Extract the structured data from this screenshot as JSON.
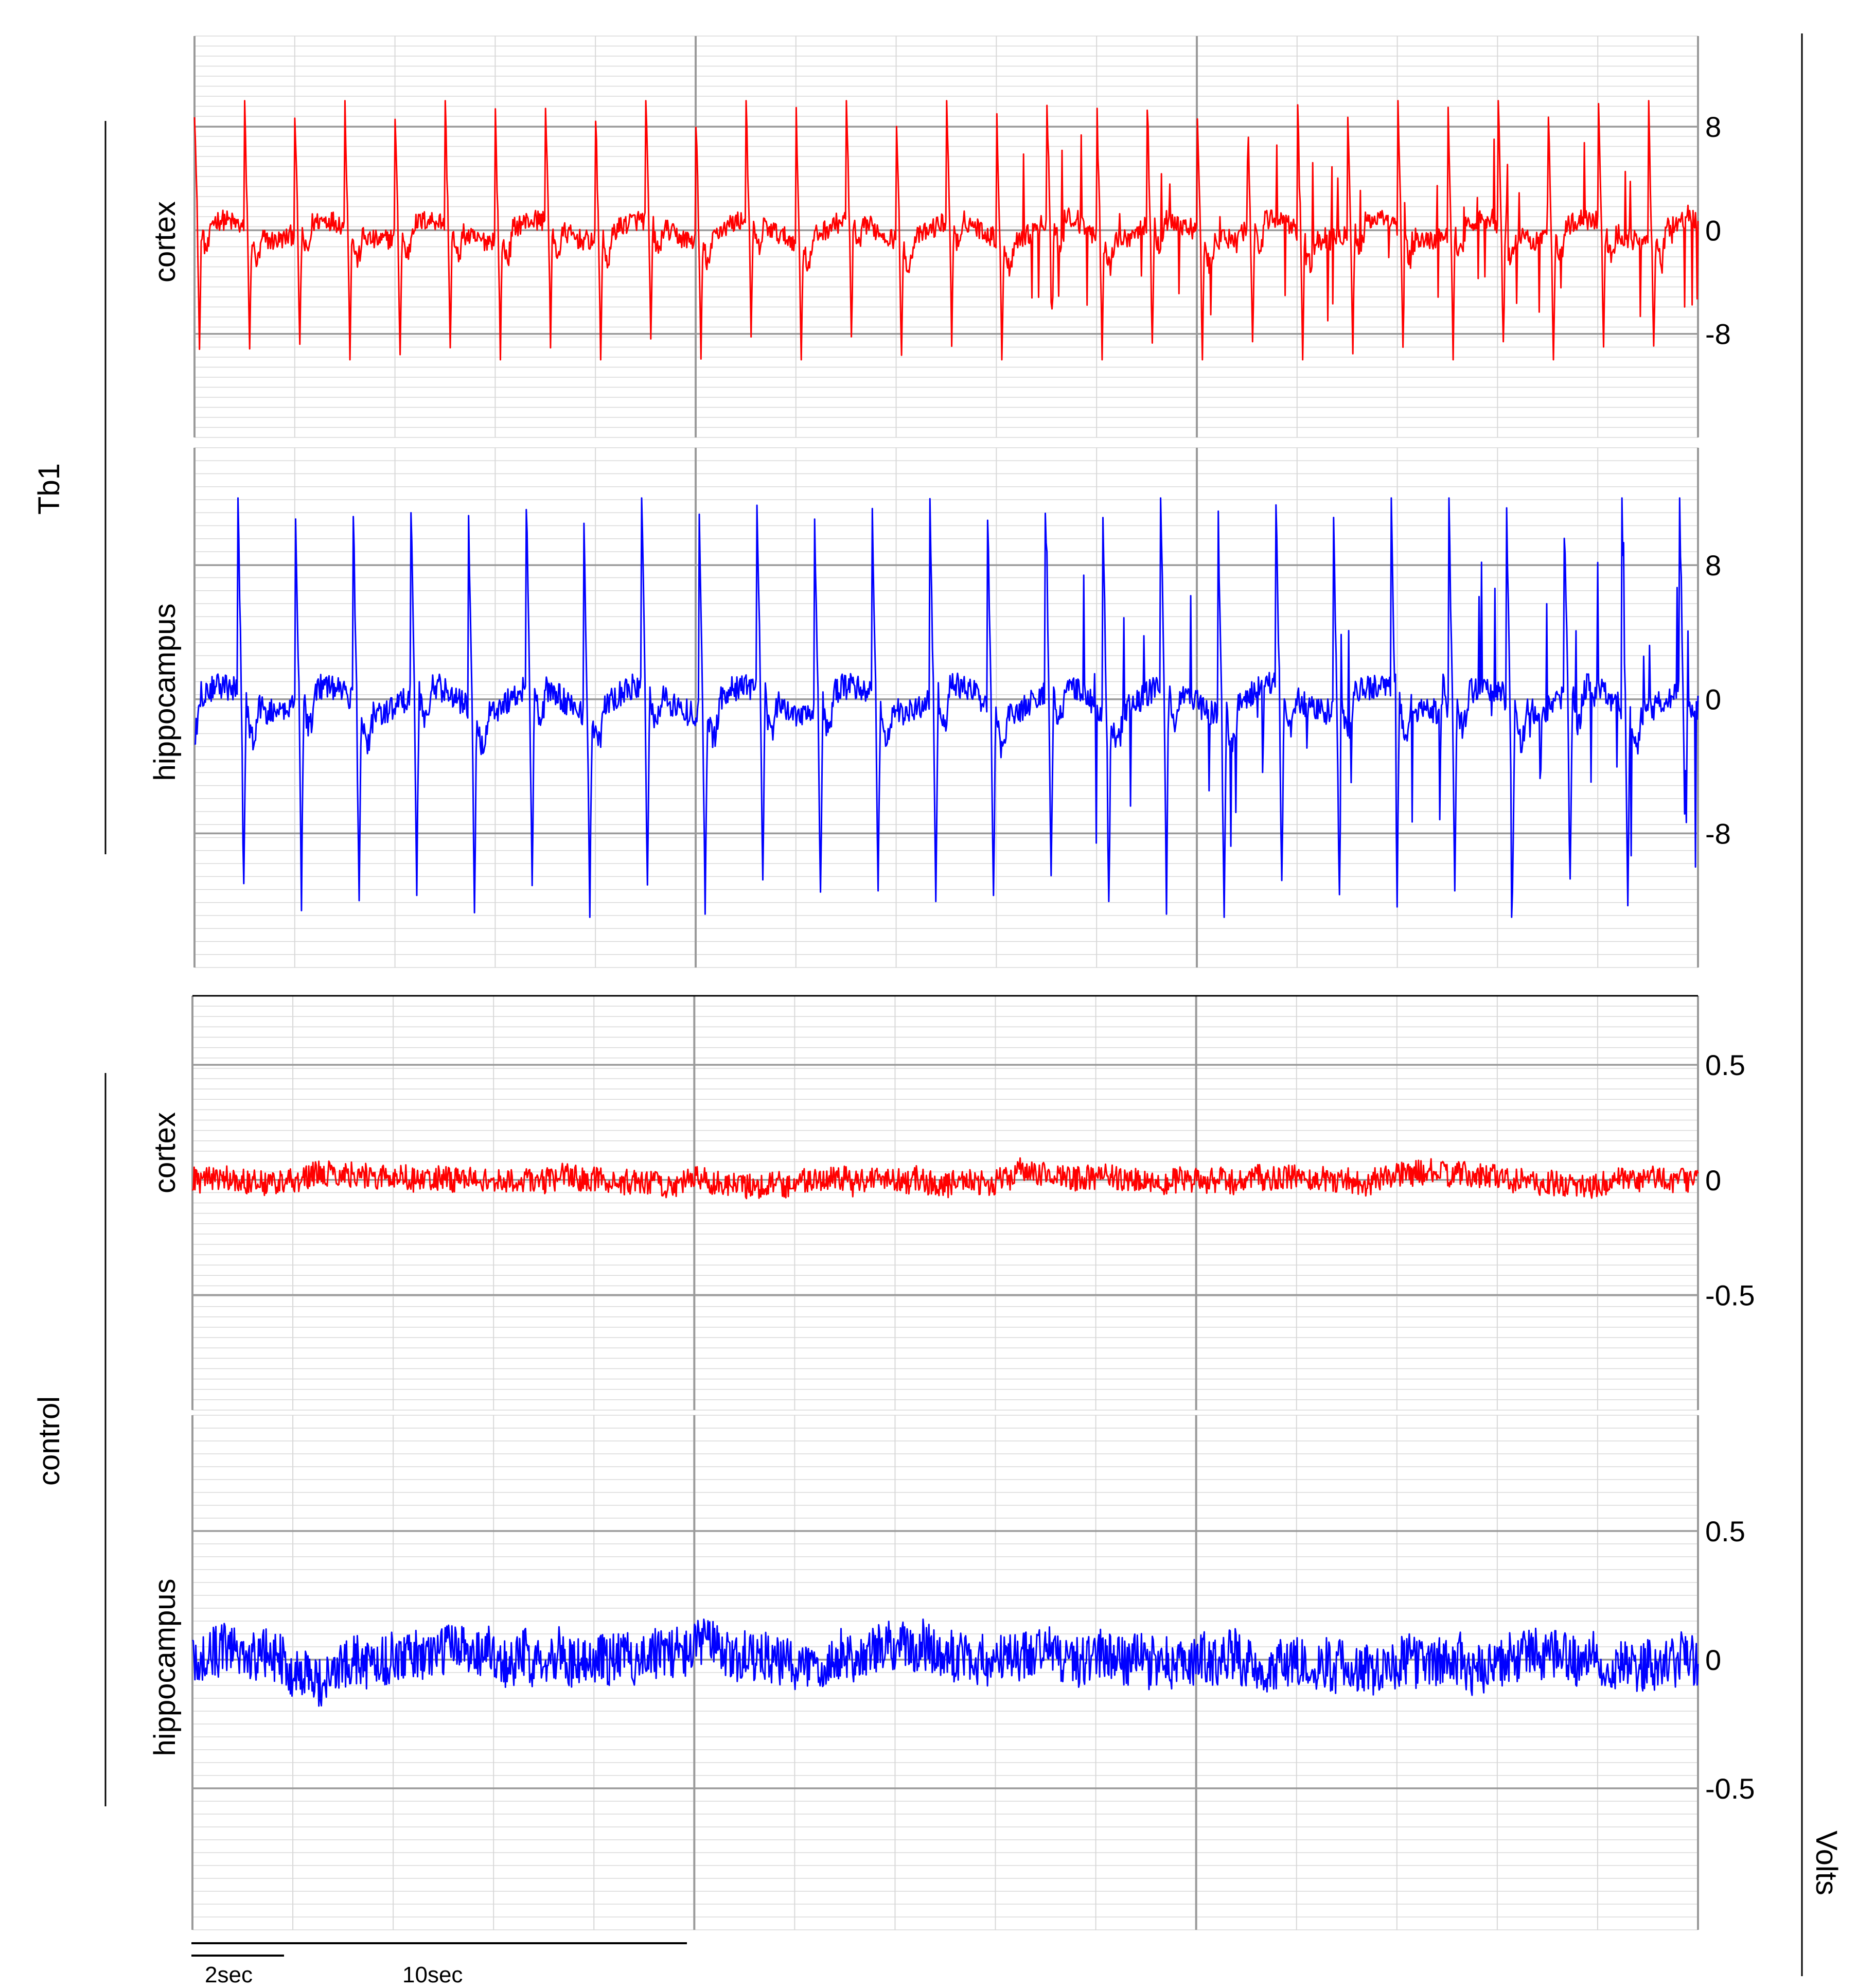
{
  "figure": {
    "group_labels": [
      "Tb1",
      "control"
    ],
    "units_label": "Volts",
    "scale_bars": {
      "short": "2sec",
      "long": "10sec"
    }
  },
  "colors": {
    "cortex": "#ff0000",
    "hippocampus": "#0000ff",
    "grid_major": "#9a9a9a",
    "grid_minor": "#d8d8d8"
  },
  "chart_data": [
    {
      "type": "line",
      "group": "Tb1",
      "ylabel": "cortex",
      "series": [
        {
          "color": "#ff0000",
          "pattern": "spike-wave",
          "amplitude_range": [
            -10,
            10
          ]
        }
      ],
      "yticks": [
        8,
        0,
        -8
      ],
      "ytick_labels": [
        "8",
        "0",
        "-8"
      ],
      "ylim": [
        -16,
        15
      ],
      "grid": true
    },
    {
      "type": "line",
      "group": "Tb1",
      "ylabel": "hippocampus",
      "series": [
        {
          "color": "#0000ff",
          "pattern": "spike-wave",
          "amplitude_range": [
            -13,
            12
          ]
        }
      ],
      "yticks": [
        8,
        0,
        -8
      ],
      "ytick_labels": [
        "8",
        "0",
        "-8"
      ],
      "ylim": [
        -16,
        15
      ],
      "grid": true
    },
    {
      "type": "line",
      "group": "control",
      "ylabel": "cortex",
      "series": [
        {
          "color": "#ff0000",
          "pattern": "noise",
          "amplitude_range": [
            -0.1,
            0.1
          ]
        }
      ],
      "yticks": [
        0.5,
        0,
        -0.5
      ],
      "ytick_labels": [
        "0.5",
        "0",
        "-0.5"
      ],
      "ylim": [
        -1,
        0.8
      ],
      "grid": true
    },
    {
      "type": "line",
      "group": "control",
      "ylabel": "hippocampus",
      "series": [
        {
          "color": "#0000ff",
          "pattern": "noise",
          "amplitude_range": [
            -0.18,
            0.18
          ]
        }
      ],
      "yticks": [
        0.5,
        0,
        -0.5
      ],
      "ytick_labels": [
        "0.5",
        "0",
        "-0.5"
      ],
      "ylim": [
        -1.05,
        0.95
      ],
      "grid": true
    }
  ]
}
